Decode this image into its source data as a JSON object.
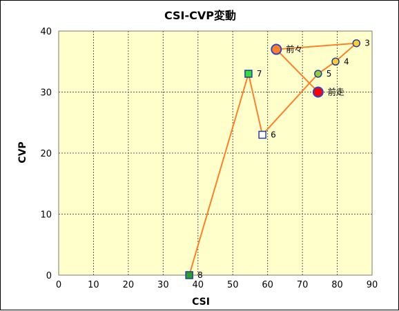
{
  "chart_data": {
    "type": "scatter",
    "title": "CSI-CVP変動",
    "xlabel": "CSI",
    "ylabel": "CVP",
    "xlim": [
      0,
      90
    ],
    "ylim": [
      0,
      40
    ],
    "x_ticks": [
      0,
      10,
      20,
      30,
      40,
      50,
      60,
      70,
      80,
      90
    ],
    "y_ticks": [
      0,
      10,
      20,
      30,
      40
    ],
    "grid": true,
    "plot_background": "#ffffcc",
    "line_color": "#ff7f27",
    "points": [
      {
        "label": "8",
        "x": 37.5,
        "y": 0,
        "marker": "square",
        "fill": "#2ca02c",
        "stroke": "#1f3f9f"
      },
      {
        "label": "7",
        "x": 54.5,
        "y": 33,
        "marker": "square",
        "fill": "#33dd33",
        "stroke": "#1f3f9f"
      },
      {
        "label": "6",
        "x": 58.5,
        "y": 23,
        "marker": "square",
        "fill": "#ffffff",
        "stroke": "#1f3f9f"
      },
      {
        "label": "5",
        "x": 74.5,
        "y": 33,
        "marker": "circle",
        "fill": "#99cc33",
        "stroke": "#1f3f9f"
      },
      {
        "label": "4",
        "x": 79.5,
        "y": 35,
        "marker": "circle",
        "fill": "#ffcc33",
        "stroke": "#1f3f9f"
      },
      {
        "label": "3",
        "x": 85.5,
        "y": 38,
        "marker": "circle",
        "fill": "#ffcc33",
        "stroke": "#1f3f9f"
      },
      {
        "label": "前々",
        "x": 62.5,
        "y": 37,
        "marker": "circle-large",
        "fill": "#ff7f27",
        "stroke": "#3344cc"
      },
      {
        "label": "前走",
        "x": 74.5,
        "y": 30,
        "marker": "circle-large",
        "fill": "#ff0000",
        "stroke": "#3344cc"
      }
    ],
    "path_order": [
      "8",
      "7",
      "6",
      "5",
      "4",
      "3",
      "前々",
      "前走"
    ]
  }
}
